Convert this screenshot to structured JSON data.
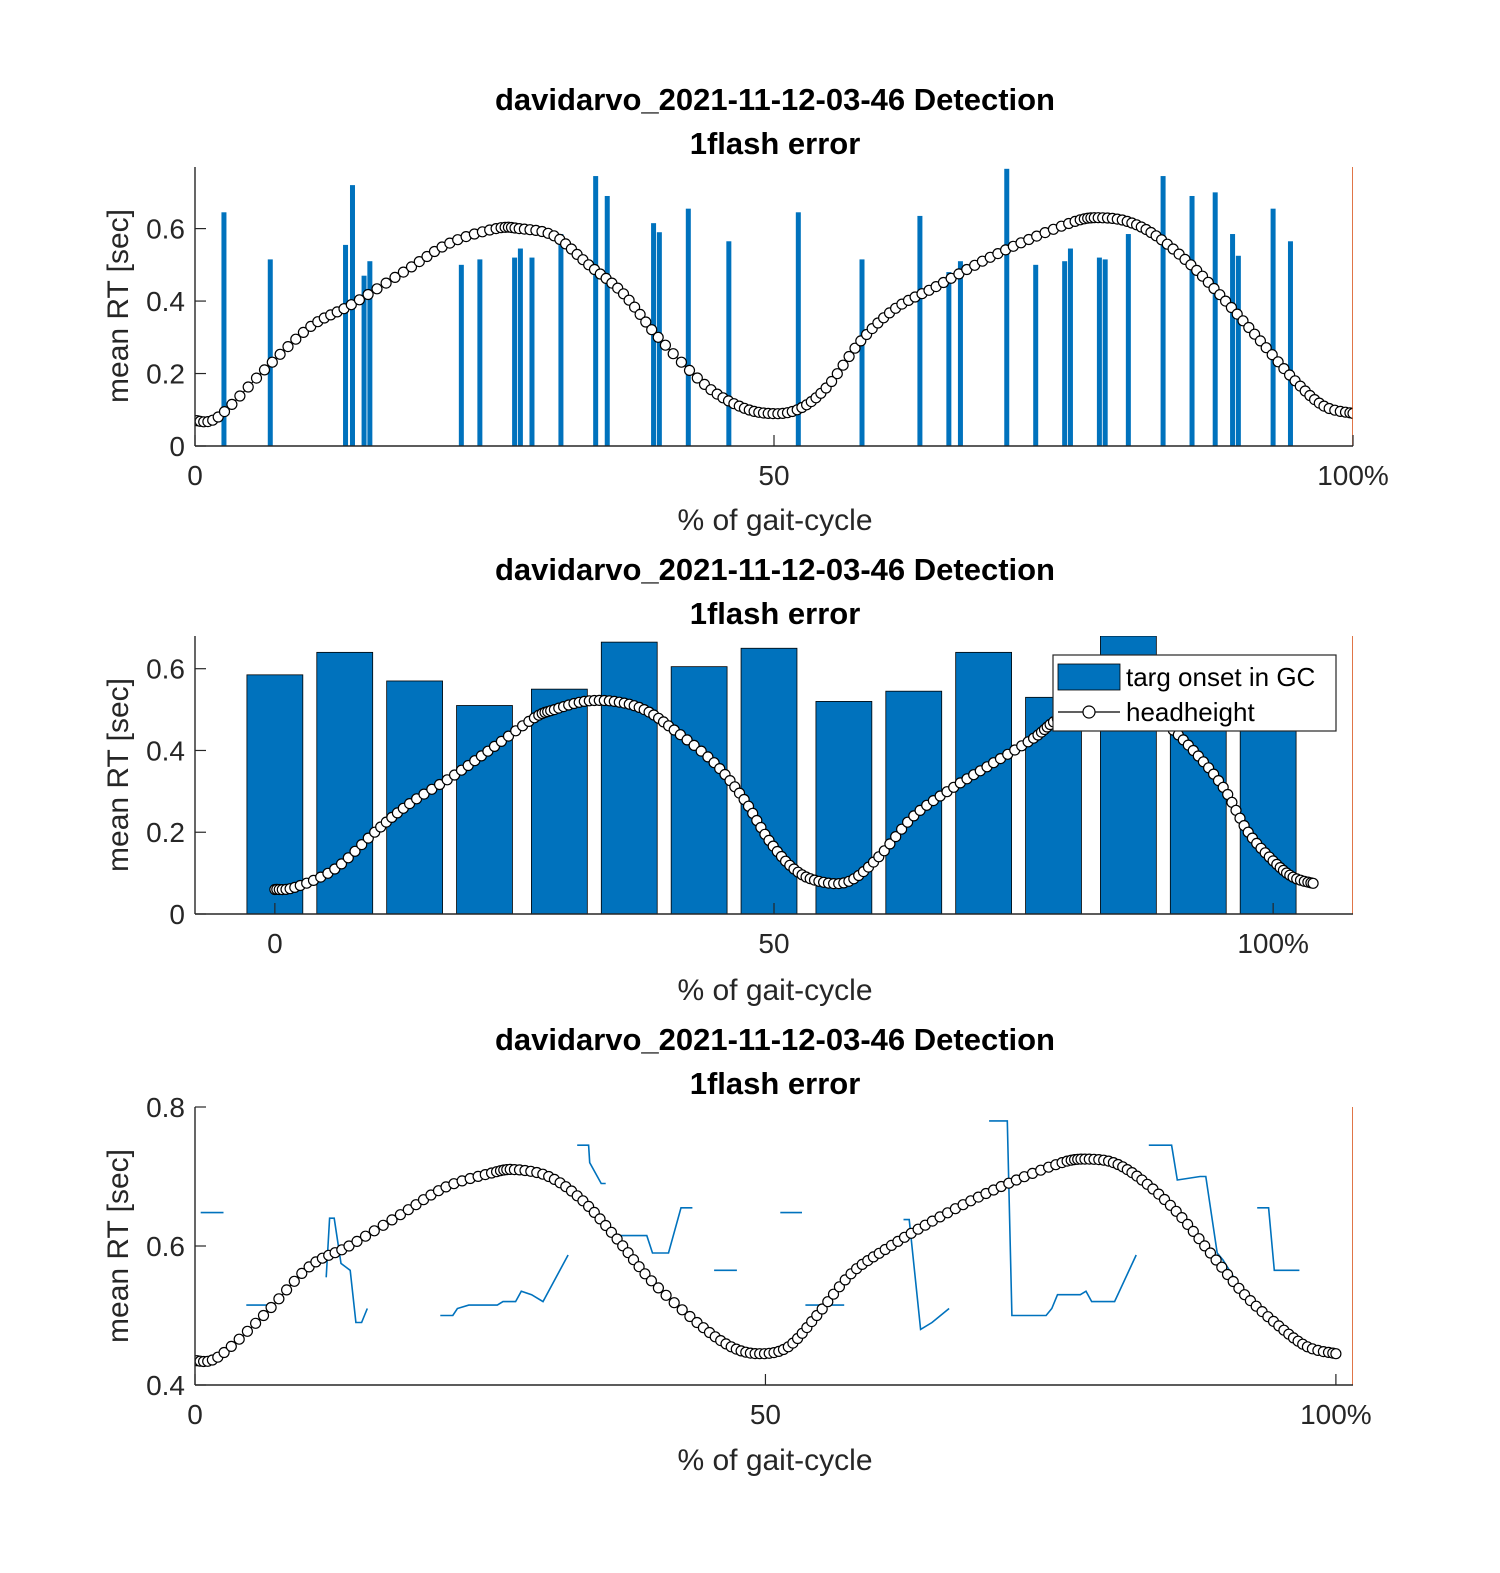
{
  "figure": {
    "background": "#ffffff"
  },
  "colors": {
    "bars": "#0072bd",
    "head_line": "#000000",
    "marker_fill": "#ffffff",
    "end_line": "#d95319",
    "axes": "#262626"
  },
  "chart_data": [
    {
      "type": "bar",
      "title": "davidarvo_2021-11-12-03-46 Detection",
      "subtitle": "1flash error",
      "xlabel": "% of gait-cycle",
      "ylabel": "mean RT [sec]",
      "xlim": [
        0,
        100
      ],
      "ylim": [
        0,
        0.77
      ],
      "xticks": [
        {
          "v": 0,
          "label": "0"
        },
        {
          "v": 50,
          "label": "50"
        },
        {
          "v": 100,
          "label": "100%"
        }
      ],
      "yticks": [
        {
          "v": 0,
          "label": "0"
        },
        {
          "v": 0.2,
          "label": "0.2"
        },
        {
          "v": 0.4,
          "label": "0.4"
        },
        {
          "v": 0.6,
          "label": "0.6"
        }
      ],
      "end_line_x": 100,
      "bars": {
        "x": [
          2.5,
          6.5,
          13,
          13.6,
          14.6,
          15.1,
          23,
          24.6,
          27.6,
          28.1,
          29.1,
          31.6,
          34.6,
          35.6,
          39.6,
          40.1,
          42.6,
          46.1,
          52.1,
          57.6,
          62.6,
          65.1,
          66.1,
          70.1,
          72.6,
          75.1,
          75.6,
          78.1,
          78.6,
          80.6,
          83.6,
          86.1,
          88.1,
          89.6,
          90.1,
          93.1,
          94.6
        ],
        "values": [
          0.645,
          0.515,
          0.555,
          0.72,
          0.47,
          0.51,
          0.5,
          0.515,
          0.52,
          0.545,
          0.52,
          0.585,
          0.745,
          0.69,
          0.615,
          0.59,
          0.655,
          0.565,
          0.645,
          0.515,
          0.635,
          0.48,
          0.51,
          0.765,
          0.5,
          0.51,
          0.545,
          0.52,
          0.515,
          0.585,
          0.745,
          0.69,
          0.7,
          0.585,
          0.525,
          0.655,
          0.565
        ]
      },
      "headheight": {
        "x": [
          0,
          2,
          6,
          10,
          13.5,
          18,
          22,
          26,
          28,
          31,
          34,
          37,
          40,
          44,
          47,
          49.5,
          52,
          54.5,
          57.5,
          60.5,
          64,
          68,
          72,
          76,
          78,
          80.5,
          83,
          86,
          89,
          92,
          95,
          97.5,
          100
        ],
        "y": [
          0.07,
          0.08,
          0.21,
          0.33,
          0.39,
          0.48,
          0.56,
          0.6,
          0.6,
          0.58,
          0.5,
          0.42,
          0.3,
          0.17,
          0.11,
          0.09,
          0.1,
          0.16,
          0.29,
          0.38,
          0.44,
          0.51,
          0.57,
          0.62,
          0.63,
          0.62,
          0.58,
          0.5,
          0.4,
          0.29,
          0.18,
          0.11,
          0.09
        ]
      }
    },
    {
      "type": "bar",
      "title": "davidarvo_2021-11-12-03-46 Detection",
      "subtitle": "1flash error",
      "xlabel": "% of gait-cycle",
      "ylabel": "mean RT [sec]",
      "xlim": [
        -8,
        108
      ],
      "ylim": [
        0,
        0.68
      ],
      "xticks": [
        {
          "v": 0,
          "label": "0"
        },
        {
          "v": 50,
          "label": "50"
        },
        {
          "v": 100,
          "label": "100%"
        }
      ],
      "yticks": [
        {
          "v": 0,
          "label": "0"
        },
        {
          "v": 0.2,
          "label": "0.2"
        },
        {
          "v": 0.4,
          "label": "0.4"
        },
        {
          "v": 0.6,
          "label": "0.6"
        }
      ],
      "end_line_x": 108,
      "bar_width": 5.6,
      "legend": {
        "position": "top-right",
        "entries": [
          {
            "label": "targ onset in GC",
            "kind": "bar"
          },
          {
            "label": "headheight",
            "kind": "line-marker"
          }
        ]
      },
      "bars": {
        "x": [
          0,
          7,
          14,
          21,
          28.5,
          35.5,
          42.5,
          49.5,
          57,
          64,
          71,
          78,
          85.5,
          92.5,
          99.5
        ],
        "values": [
          0.585,
          0.64,
          0.57,
          0.51,
          0.55,
          0.665,
          0.605,
          0.65,
          0.52,
          0.545,
          0.64,
          0.53,
          0.68,
          0.51,
          0.52
        ]
      },
      "headheight": {
        "x": [
          0,
          2,
          6,
          10,
          13.5,
          18,
          22,
          26,
          28,
          31,
          34,
          37,
          40,
          44,
          47,
          49.5,
          52,
          54.5,
          57.5,
          60.5,
          64,
          68,
          72,
          76,
          78,
          80.5,
          83,
          86,
          89,
          92,
          95,
          97.5,
          100,
          102,
          104
        ],
        "y": [
          0.06,
          0.065,
          0.11,
          0.2,
          0.27,
          0.34,
          0.41,
          0.48,
          0.5,
          0.52,
          0.52,
          0.5,
          0.45,
          0.37,
          0.28,
          0.18,
          0.11,
          0.08,
          0.08,
          0.14,
          0.24,
          0.31,
          0.37,
          0.43,
          0.47,
          0.51,
          0.52,
          0.51,
          0.47,
          0.4,
          0.31,
          0.2,
          0.13,
          0.09,
          0.075
        ]
      }
    },
    {
      "type": "line",
      "title": "davidarvo_2021-11-12-03-46 Detection",
      "subtitle": "1flash error",
      "xlabel": "% of gait-cycle",
      "ylabel": "mean RT [sec]",
      "xlim": [
        0,
        101.5
      ],
      "ylim": [
        0.4,
        0.8
      ],
      "xticks": [
        {
          "v": 0,
          "label": "0"
        },
        {
          "v": 50,
          "label": "50"
        },
        {
          "v": 100,
          "label": "100%"
        }
      ],
      "yticks": [
        {
          "v": 0.4,
          "label": "0.4"
        },
        {
          "v": 0.6,
          "label": "0.6"
        },
        {
          "v": 0.8,
          "label": "0.8"
        }
      ],
      "end_line_x": 101.5,
      "segments": [
        {
          "x": [
            0.5,
            2.5
          ],
          "y": [
            0.648,
            0.648
          ]
        },
        {
          "x": [
            4.5,
            7
          ],
          "y": [
            0.515,
            0.515
          ]
        },
        {
          "x": [
            11.5,
            11.8,
            12.2,
            12.8,
            13.2,
            13.6,
            14.1,
            14.6,
            15.1
          ],
          "y": [
            0.555,
            0.64,
            0.64,
            0.575,
            0.57,
            0.565,
            0.49,
            0.49,
            0.51
          ]
        },
        {
          "x": [
            21.5,
            22.6,
            23,
            24,
            25,
            26.5,
            27,
            28.1,
            28.6,
            29.5,
            30.5,
            32.7
          ],
          "y": [
            0.5,
            0.5,
            0.51,
            0.515,
            0.515,
            0.515,
            0.52,
            0.52,
            0.535,
            0.53,
            0.52,
            0.587
          ]
        },
        {
          "x": [
            33.5,
            34.5,
            34.6,
            35.6,
            36
          ],
          "y": [
            0.745,
            0.745,
            0.72,
            0.69,
            0.69
          ]
        },
        {
          "x": [
            36.5,
            39.6,
            40.1,
            41.5,
            42.6,
            43.6
          ],
          "y": [
            0.615,
            0.615,
            0.59,
            0.59,
            0.655,
            0.655
          ]
        },
        {
          "x": [
            45.5,
            47.5
          ],
          "y": [
            0.565,
            0.565
          ]
        },
        {
          "x": [
            51.3,
            53.2
          ],
          "y": [
            0.648,
            0.648
          ]
        },
        {
          "x": [
            53.5,
            56.9
          ],
          "y": [
            0.515,
            0.515
          ]
        },
        {
          "x": [
            62.1,
            62.6,
            63.6,
            64.6,
            66.1
          ],
          "y": [
            0.638,
            0.638,
            0.48,
            0.49,
            0.51
          ]
        },
        {
          "x": [
            69.6,
            71.2,
            71.6,
            74.6,
            75.1,
            75.6,
            77.6,
            78.1,
            78.6,
            80.6,
            82.5
          ],
          "y": [
            0.78,
            0.78,
            0.5,
            0.5,
            0.51,
            0.53,
            0.53,
            0.535,
            0.52,
            0.52,
            0.587
          ]
        },
        {
          "x": [
            83.6,
            85.6,
            86.1,
            88.1,
            88.6,
            89.6,
            90.1,
            92.2
          ],
          "y": [
            0.745,
            0.745,
            0.695,
            0.7,
            0.7,
            0.59,
            0.58,
            0.525
          ]
        },
        {
          "x": [
            93.1,
            94.1,
            94.6,
            95.6,
            96.8
          ],
          "y": [
            0.655,
            0.655,
            0.565,
            0.565,
            0.565
          ]
        }
      ],
      "headheight": {
        "x": [
          0,
          2,
          6,
          10,
          13.5,
          18,
          22,
          26,
          28,
          31,
          34,
          37,
          40,
          44,
          47,
          49.5,
          52,
          54.5,
          57.5,
          60.5,
          64,
          68,
          72,
          76,
          78,
          80.5,
          83,
          86,
          89,
          92,
          95,
          97.5,
          100
        ],
        "y": [
          0.435,
          0.44,
          0.5,
          0.57,
          0.6,
          0.645,
          0.685,
          0.705,
          0.71,
          0.7,
          0.665,
          0.61,
          0.55,
          0.49,
          0.455,
          0.445,
          0.455,
          0.5,
          0.56,
          0.595,
          0.63,
          0.665,
          0.695,
          0.72,
          0.725,
          0.72,
          0.695,
          0.65,
          0.59,
          0.53,
          0.485,
          0.455,
          0.445
        ]
      }
    }
  ]
}
